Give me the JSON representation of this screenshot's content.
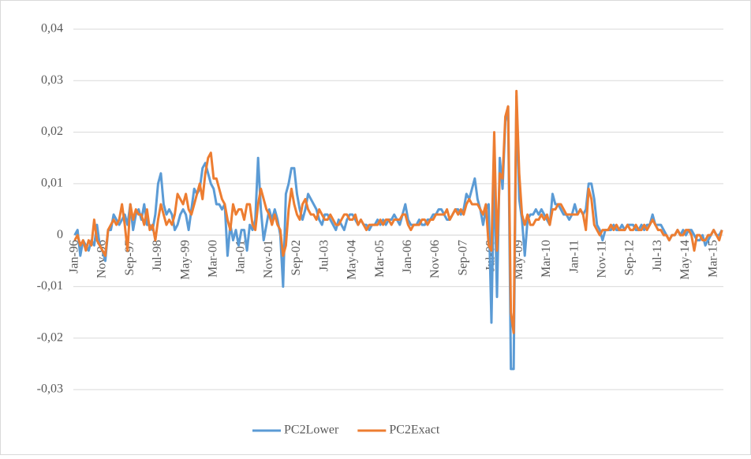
{
  "chart_data": {
    "type": "line",
    "categories": [
      "Jan-96",
      null,
      null,
      null,
      null,
      null,
      null,
      null,
      null,
      null,
      "Nov-96",
      null,
      null,
      null,
      null,
      null,
      null,
      null,
      null,
      null,
      "Sep-97",
      null,
      null,
      null,
      null,
      null,
      null,
      null,
      null,
      null,
      "Jul-98",
      null,
      null,
      null,
      null,
      null,
      null,
      null,
      null,
      null,
      "May-99",
      null,
      null,
      null,
      null,
      null,
      null,
      null,
      null,
      null,
      "Mar-00",
      null,
      null,
      null,
      null,
      null,
      null,
      null,
      null,
      null,
      "Jan-01",
      null,
      null,
      null,
      null,
      null,
      null,
      null,
      null,
      null,
      "Nov-01",
      null,
      null,
      null,
      null,
      null,
      null,
      null,
      null,
      null,
      "Sep-02",
      null,
      null,
      null,
      null,
      null,
      null,
      null,
      null,
      null,
      "Jul-03",
      null,
      null,
      null,
      null,
      null,
      null,
      null,
      null,
      null,
      "May-04",
      null,
      null,
      null,
      null,
      null,
      null,
      null,
      null,
      null,
      "Mar-05",
      null,
      null,
      null,
      null,
      null,
      null,
      null,
      null,
      null,
      "Jan-06",
      null,
      null,
      null,
      null,
      null,
      null,
      null,
      null,
      null,
      "Nov-06",
      null,
      null,
      null,
      null,
      null,
      null,
      null,
      null,
      null,
      "Sep-07",
      null,
      null,
      null,
      null,
      null,
      null,
      null,
      null,
      null,
      "Jul-08",
      null,
      null,
      null,
      null,
      null,
      null,
      null,
      null,
      null,
      "May-09",
      null,
      null,
      null,
      null,
      null,
      null,
      null,
      null,
      null,
      "Mar-10",
      null,
      null,
      null,
      null,
      null,
      null,
      null,
      null,
      null,
      "Jan-11",
      null,
      null,
      null,
      null,
      null,
      null,
      null,
      null,
      null,
      "Nov-11",
      null,
      null,
      null,
      null,
      null,
      null,
      null,
      null,
      null,
      "Sep-12",
      null,
      null,
      null,
      null,
      null,
      null,
      null,
      null,
      null,
      "Jul-13",
      null,
      null,
      null,
      null,
      null,
      null,
      null,
      null,
      null,
      "May-14",
      null,
      null,
      null,
      null,
      null,
      null,
      null,
      null,
      null,
      "Mar-15",
      null,
      null,
      null
    ],
    "series": [
      {
        "name": "PC2Lower",
        "color": "#5b9bd5",
        "values": [
          0,
          0.001,
          -0.004,
          -0.001,
          -0.002,
          -0.003,
          -0.001,
          -0.002,
          0.002,
          -0.002,
          -0.003,
          -0.005,
          0.001,
          0.001,
          0.004,
          0.003,
          0.002,
          0.003,
          0.004,
          0.002,
          0.006,
          0.001,
          0.004,
          0.005,
          0.003,
          0.006,
          0.002,
          0.002,
          0.001,
          0.004,
          0.01,
          0.012,
          0.006,
          0.004,
          0.005,
          0.004,
          0.001,
          0.002,
          0.004,
          0.005,
          0.004,
          0.001,
          0.005,
          0.009,
          0.008,
          0.009,
          0.013,
          0.014,
          0.012,
          0.01,
          0.009,
          0.006,
          0.006,
          0.005,
          0.006,
          -0.004,
          0.002,
          -0.001,
          0.001,
          -0.002,
          0.001,
          0.001,
          -0.003,
          0.002,
          0.001,
          0.003,
          0.015,
          0.005,
          -0.001,
          0.002,
          0.005,
          0.003,
          0.005,
          0.003,
          0,
          -0.01,
          0.008,
          0.01,
          0.013,
          0.013,
          0.008,
          0.005,
          0.003,
          0.005,
          0.008,
          0.007,
          0.006,
          0.005,
          0.003,
          0.002,
          0.004,
          0.004,
          0.003,
          0.002,
          0.001,
          0.003,
          0.002,
          0.001,
          0.003,
          0.004,
          0.004,
          0.003,
          0.002,
          0.003,
          0.002,
          0.002,
          0.001,
          0.002,
          0.002,
          0.003,
          0.002,
          0.003,
          0.002,
          0.003,
          0.003,
          0.004,
          0.003,
          0.002,
          0.004,
          0.006,
          0.003,
          0.002,
          0.002,
          0.002,
          0.003,
          0.002,
          0.002,
          0.003,
          0.003,
          0.004,
          0.004,
          0.005,
          0.005,
          0.004,
          0.003,
          0.003,
          0.004,
          0.005,
          0.005,
          0.004,
          0.005,
          0.008,
          0.007,
          0.009,
          0.011,
          0.007,
          0.005,
          0.002,
          0.005,
          0.006,
          -0.017,
          0.013,
          -0.012,
          0.015,
          0.009,
          0.022,
          0.025,
          -0.026,
          -0.026,
          0.027,
          0.007,
          0.003,
          -0.004,
          0.003,
          0.004,
          0.004,
          0.005,
          0.004,
          0.005,
          0.004,
          0.003,
          0.002,
          0.008,
          0.006,
          0.006,
          0.005,
          0.004,
          0.004,
          0.003,
          0.004,
          0.006,
          0.004,
          0.005,
          0.004,
          0.005,
          0.01,
          0.01,
          0.007,
          0.002,
          0.001,
          -0.001,
          0.001,
          0.001,
          0.001,
          0.002,
          0.001,
          0.001,
          0.002,
          0.001,
          0.002,
          0.002,
          0.002,
          0.001,
          0.001,
          0.002,
          0.001,
          0.002,
          0.002,
          0.004,
          0.002,
          0.002,
          0.002,
          0.001,
          0,
          -0.001,
          0,
          0,
          0.001,
          0,
          0.001,
          0,
          0.001,
          0.001,
          0,
          -0.001,
          -0.001,
          0,
          -0.002,
          -0.001,
          0,
          0.001,
          0,
          0,
          0.001
        ]
      },
      {
        "name": "PC2Exact",
        "color": "#ed7d31",
        "values": [
          -0.001,
          0,
          -0.002,
          -0.001,
          -0.003,
          -0.001,
          -0.002,
          0.003,
          -0.001,
          -0.002,
          -0.003,
          -0.004,
          0.001,
          0.002,
          0.003,
          0.002,
          0.003,
          0.006,
          0.002,
          -0.003,
          0.006,
          0.003,
          0.005,
          0.004,
          0.004,
          0.002,
          0.005,
          0.001,
          0.002,
          -0.001,
          0.003,
          0.006,
          0.004,
          0.002,
          0.003,
          0.002,
          0.004,
          0.008,
          0.007,
          0.006,
          0.008,
          0.005,
          0.004,
          0.006,
          0.008,
          0.01,
          0.007,
          0.012,
          0.015,
          0.016,
          0.011,
          0.011,
          0.009,
          0.007,
          0.006,
          0.003,
          0.001,
          0.006,
          0.004,
          0.005,
          0.005,
          0.003,
          0.006,
          0.006,
          0.002,
          0.001,
          0.006,
          0.009,
          0.007,
          0.005,
          0.004,
          0.002,
          0.004,
          0.002,
          0.001,
          -0.004,
          -0.002,
          0.005,
          0.009,
          0.006,
          0.004,
          0.003,
          0.006,
          0.007,
          0.005,
          0.004,
          0.004,
          0.003,
          0.005,
          0.004,
          0.003,
          0.003,
          0.004,
          0.003,
          0.002,
          0.002,
          0.003,
          0.004,
          0.004,
          0.003,
          0.003,
          0.004,
          0.002,
          0.003,
          0.002,
          0.001,
          0.002,
          0.002,
          0.002,
          0.002,
          0.003,
          0.002,
          0.003,
          0.003,
          0.002,
          0.003,
          0.003,
          0.003,
          0.004,
          0.004,
          0.002,
          0.001,
          0.002,
          0.002,
          0.002,
          0.003,
          0.003,
          0.002,
          0.003,
          0.003,
          0.004,
          0.004,
          0.004,
          0.004,
          0.005,
          0.003,
          0.004,
          0.005,
          0.004,
          0.005,
          0.004,
          0.006,
          0.007,
          0.006,
          0.006,
          0.006,
          0.005,
          0.004,
          0.006,
          -0.002,
          -0.003,
          0.02,
          -0.003,
          0.012,
          0.011,
          0.023,
          0.025,
          -0.015,
          -0.019,
          0.028,
          0.012,
          0.004,
          0.002,
          0.004,
          0.002,
          0.002,
          0.003,
          0.003,
          0.004,
          0.003,
          0.004,
          0.002,
          0.005,
          0.005,
          0.006,
          0.006,
          0.005,
          0.004,
          0.004,
          0.004,
          0.004,
          0.004,
          0.005,
          0.004,
          0.001,
          0.009,
          0.007,
          0.002,
          0.001,
          0,
          0.001,
          0.001,
          0.001,
          0.002,
          0.001,
          0.002,
          0.001,
          0.001,
          0.001,
          0.002,
          0.001,
          0.001,
          0.002,
          0.001,
          0.001,
          0.002,
          0.001,
          0.002,
          0.003,
          0.002,
          0.001,
          0.001,
          0,
          0,
          -0.001,
          0,
          0,
          0.001,
          0,
          0,
          0.001,
          0.001,
          0,
          -0.003,
          0,
          0,
          -0.001,
          -0.001,
          0,
          0,
          0.001,
          0,
          -0.001,
          0.001
        ]
      }
    ],
    "ylim": [
      -0.03,
      0.04
    ],
    "yticks": [
      {
        "value": -0.03,
        "label": "-0,03"
      },
      {
        "value": -0.02,
        "label": "-0,02"
      },
      {
        "value": -0.01,
        "label": "-0,01"
      },
      0,
      {
        "value": 0.01,
        "label": "0,01"
      },
      {
        "value": 0.02,
        "label": "0,02"
      },
      {
        "value": 0.03,
        "label": "0,03"
      },
      {
        "value": 0.04,
        "label": "0,04"
      }
    ],
    "grid": true,
    "legend": "bottom"
  }
}
